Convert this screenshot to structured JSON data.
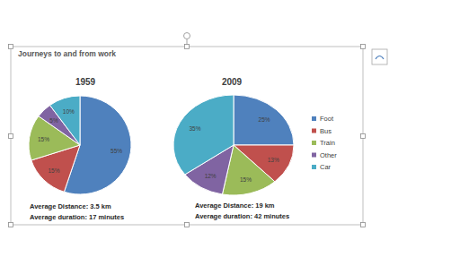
{
  "title": "Journeys to and from work",
  "chart_data": [
    {
      "type": "pie",
      "title": "1959",
      "categories": [
        "Foot",
        "Bus",
        "Train",
        "Other",
        "Car"
      ],
      "values": [
        55,
        15,
        15,
        5,
        10
      ],
      "value_labels": [
        "55%",
        "15%",
        "15%",
        "5%",
        "10%"
      ],
      "colors": [
        "#4f81bd",
        "#c0504d",
        "#9bbb59",
        "#8064a2",
        "#4bacc6"
      ],
      "data_labels": true,
      "annotations": [
        "Average Distance: 3.5 km",
        "Average duration: 17 minutes"
      ]
    },
    {
      "type": "pie",
      "title": "2009",
      "categories": [
        "Foot",
        "Bus",
        "Train",
        "Other",
        "Car"
      ],
      "values": [
        25,
        13,
        15,
        12,
        35
      ],
      "value_labels": [
        "25%",
        "13%",
        "15%",
        "12%",
        "35%"
      ],
      "colors": [
        "#4f81bd",
        "#c0504d",
        "#9bbb59",
        "#8064a2",
        "#4bacc6"
      ],
      "data_labels": true,
      "legend": "right",
      "annotations": [
        "Average Distance: 19 km",
        "Average duration: 42 minutes"
      ]
    }
  ]
}
